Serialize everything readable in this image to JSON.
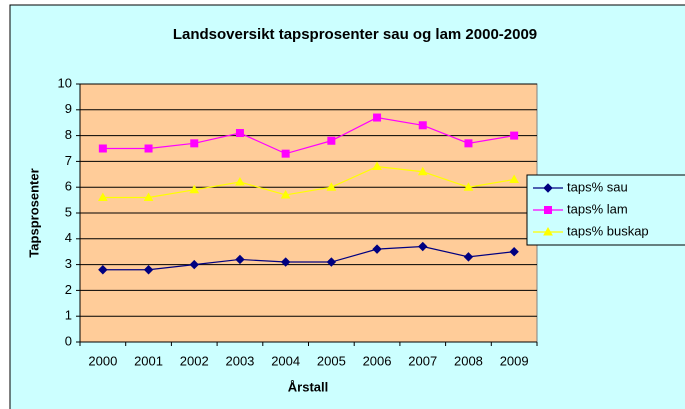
{
  "chart_data": {
    "type": "line",
    "title": "Landsoversikt tapsprosenter sau og lam 2000-2009",
    "x_label": "Årstall",
    "y_label": "Tapsprosenter",
    "categories": [
      "2000",
      "2001",
      "2002",
      "2003",
      "2004",
      "2005",
      "2006",
      "2007",
      "2008",
      "2009"
    ],
    "series": [
      {
        "name": "taps% sau",
        "color": "#000080",
        "marker": "diamond",
        "values": [
          2.8,
          2.8,
          3.0,
          3.2,
          3.1,
          3.1,
          3.6,
          3.7,
          3.3,
          3.5
        ]
      },
      {
        "name": "taps% lam",
        "color": "#ff00ff",
        "marker": "square",
        "values": [
          7.5,
          7.5,
          7.7,
          8.1,
          7.3,
          7.8,
          8.7,
          8.4,
          7.7,
          8.0
        ]
      },
      {
        "name": "taps% buskap",
        "color": "#ffff00",
        "marker": "triangle",
        "values": [
          5.6,
          5.6,
          5.9,
          6.2,
          5.7,
          6.0,
          6.8,
          6.6,
          6.0,
          6.3
        ]
      }
    ],
    "ylim": [
      0,
      10
    ],
    "yticks": [
      0,
      1,
      2,
      3,
      4,
      5,
      6,
      7,
      8,
      9,
      10
    ],
    "grid": true,
    "legend": "right"
  }
}
